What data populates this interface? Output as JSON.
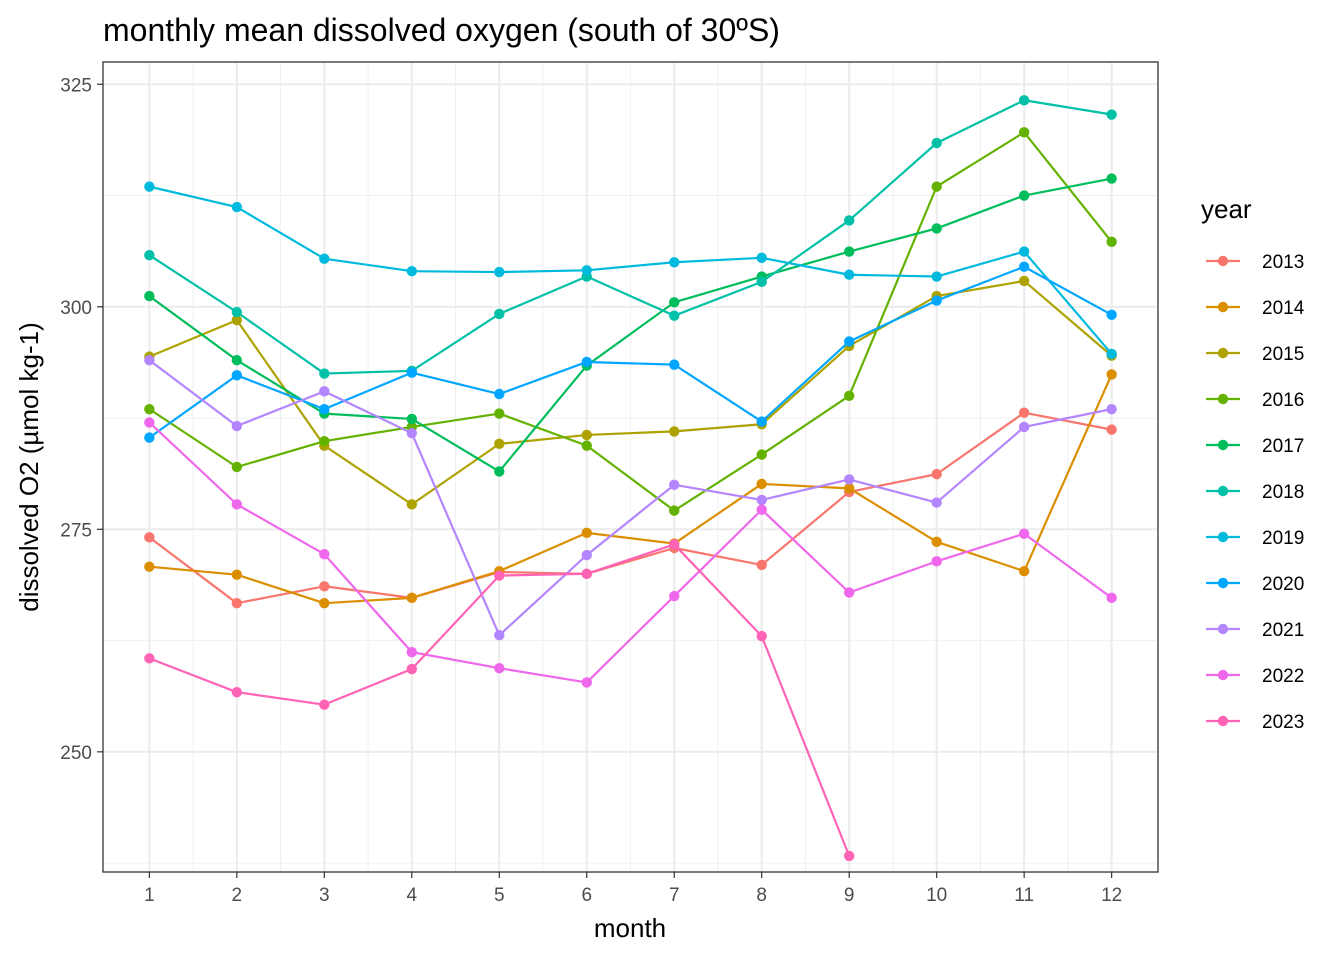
{
  "chart_data": {
    "type": "line",
    "title": "monthly mean dissolved oxygen (south of 30ºS)",
    "xlabel": "month",
    "ylabel": "dissolved O2 (µmol kg-1)",
    "x": [
      1,
      2,
      3,
      4,
      5,
      6,
      7,
      8,
      9,
      10,
      11,
      12
    ],
    "x_ticks": [
      "1",
      "2",
      "3",
      "4",
      "5",
      "6",
      "7",
      "8",
      "9",
      "10",
      "11",
      "12"
    ],
    "y_ticks": [
      "250",
      "275",
      "300",
      "325"
    ],
    "xlim": [
      0.47,
      12.53
    ],
    "ylim": [
      236.5,
      327.5
    ],
    "legend_title": "year",
    "legend_position": "right",
    "grid": true,
    "series": [
      {
        "name": "2013",
        "color": "#F8766D",
        "values": [
          274.1,
          266.7,
          268.6,
          267.3,
          270.2,
          270.0,
          272.9,
          271.0,
          279.2,
          281.2,
          288.1,
          286.2
        ]
      },
      {
        "name": "2014",
        "color": "#DB8E00",
        "values": [
          270.8,
          269.9,
          266.7,
          267.3,
          270.3,
          274.6,
          273.4,
          280.1,
          279.6,
          273.6,
          270.3,
          292.4
        ]
      },
      {
        "name": "2015",
        "color": "#AEA200",
        "values": [
          294.4,
          298.5,
          284.4,
          277.8,
          284.6,
          285.6,
          286.0,
          286.8,
          295.6,
          301.2,
          302.9,
          294.5
        ]
      },
      {
        "name": "2016",
        "color": "#64B200",
        "values": [
          288.5,
          282.0,
          284.9,
          286.5,
          288.0,
          284.4,
          277.1,
          283.4,
          290.0,
          313.5,
          319.6,
          307.3
        ]
      },
      {
        "name": "2017",
        "color": "#00BD5C",
        "values": [
          301.2,
          294.0,
          288.0,
          287.4,
          281.5,
          293.4,
          300.5,
          303.4,
          306.2,
          308.8,
          312.5,
          314.4
        ]
      },
      {
        "name": "2018",
        "color": "#00C1A7",
        "values": [
          305.8,
          299.4,
          292.5,
          292.8,
          299.2,
          303.4,
          299.0,
          302.8,
          309.7,
          318.4,
          323.2,
          321.6
        ]
      },
      {
        "name": "2019",
        "color": "#00BADE",
        "values": [
          313.5,
          311.2,
          305.4,
          304.0,
          303.9,
          304.1,
          305.0,
          305.5,
          303.6,
          303.4,
          306.2,
          294.7
        ]
      },
      {
        "name": "2020",
        "color": "#00A6FF",
        "values": [
          285.3,
          292.3,
          288.5,
          292.6,
          290.2,
          293.8,
          293.5,
          287.1,
          296.1,
          300.7,
          304.5,
          299.1
        ]
      },
      {
        "name": "2021",
        "color": "#B385FF",
        "values": [
          294.0,
          286.6,
          290.5,
          285.8,
          263.1,
          272.1,
          280.0,
          278.3,
          280.6,
          278.0,
          286.5,
          288.5
        ]
      },
      {
        "name": "2022",
        "color": "#EF67EB",
        "values": [
          287.0,
          277.8,
          272.2,
          261.2,
          259.4,
          257.8,
          267.5,
          277.2,
          267.9,
          271.4,
          274.5,
          267.3
        ]
      },
      {
        "name": "2023",
        "color": "#FF63B6",
        "values": [
          260.5,
          256.7,
          255.3,
          259.3,
          269.8,
          270.0,
          273.3,
          263.0,
          238.3,
          null,
          null,
          null
        ]
      }
    ]
  }
}
